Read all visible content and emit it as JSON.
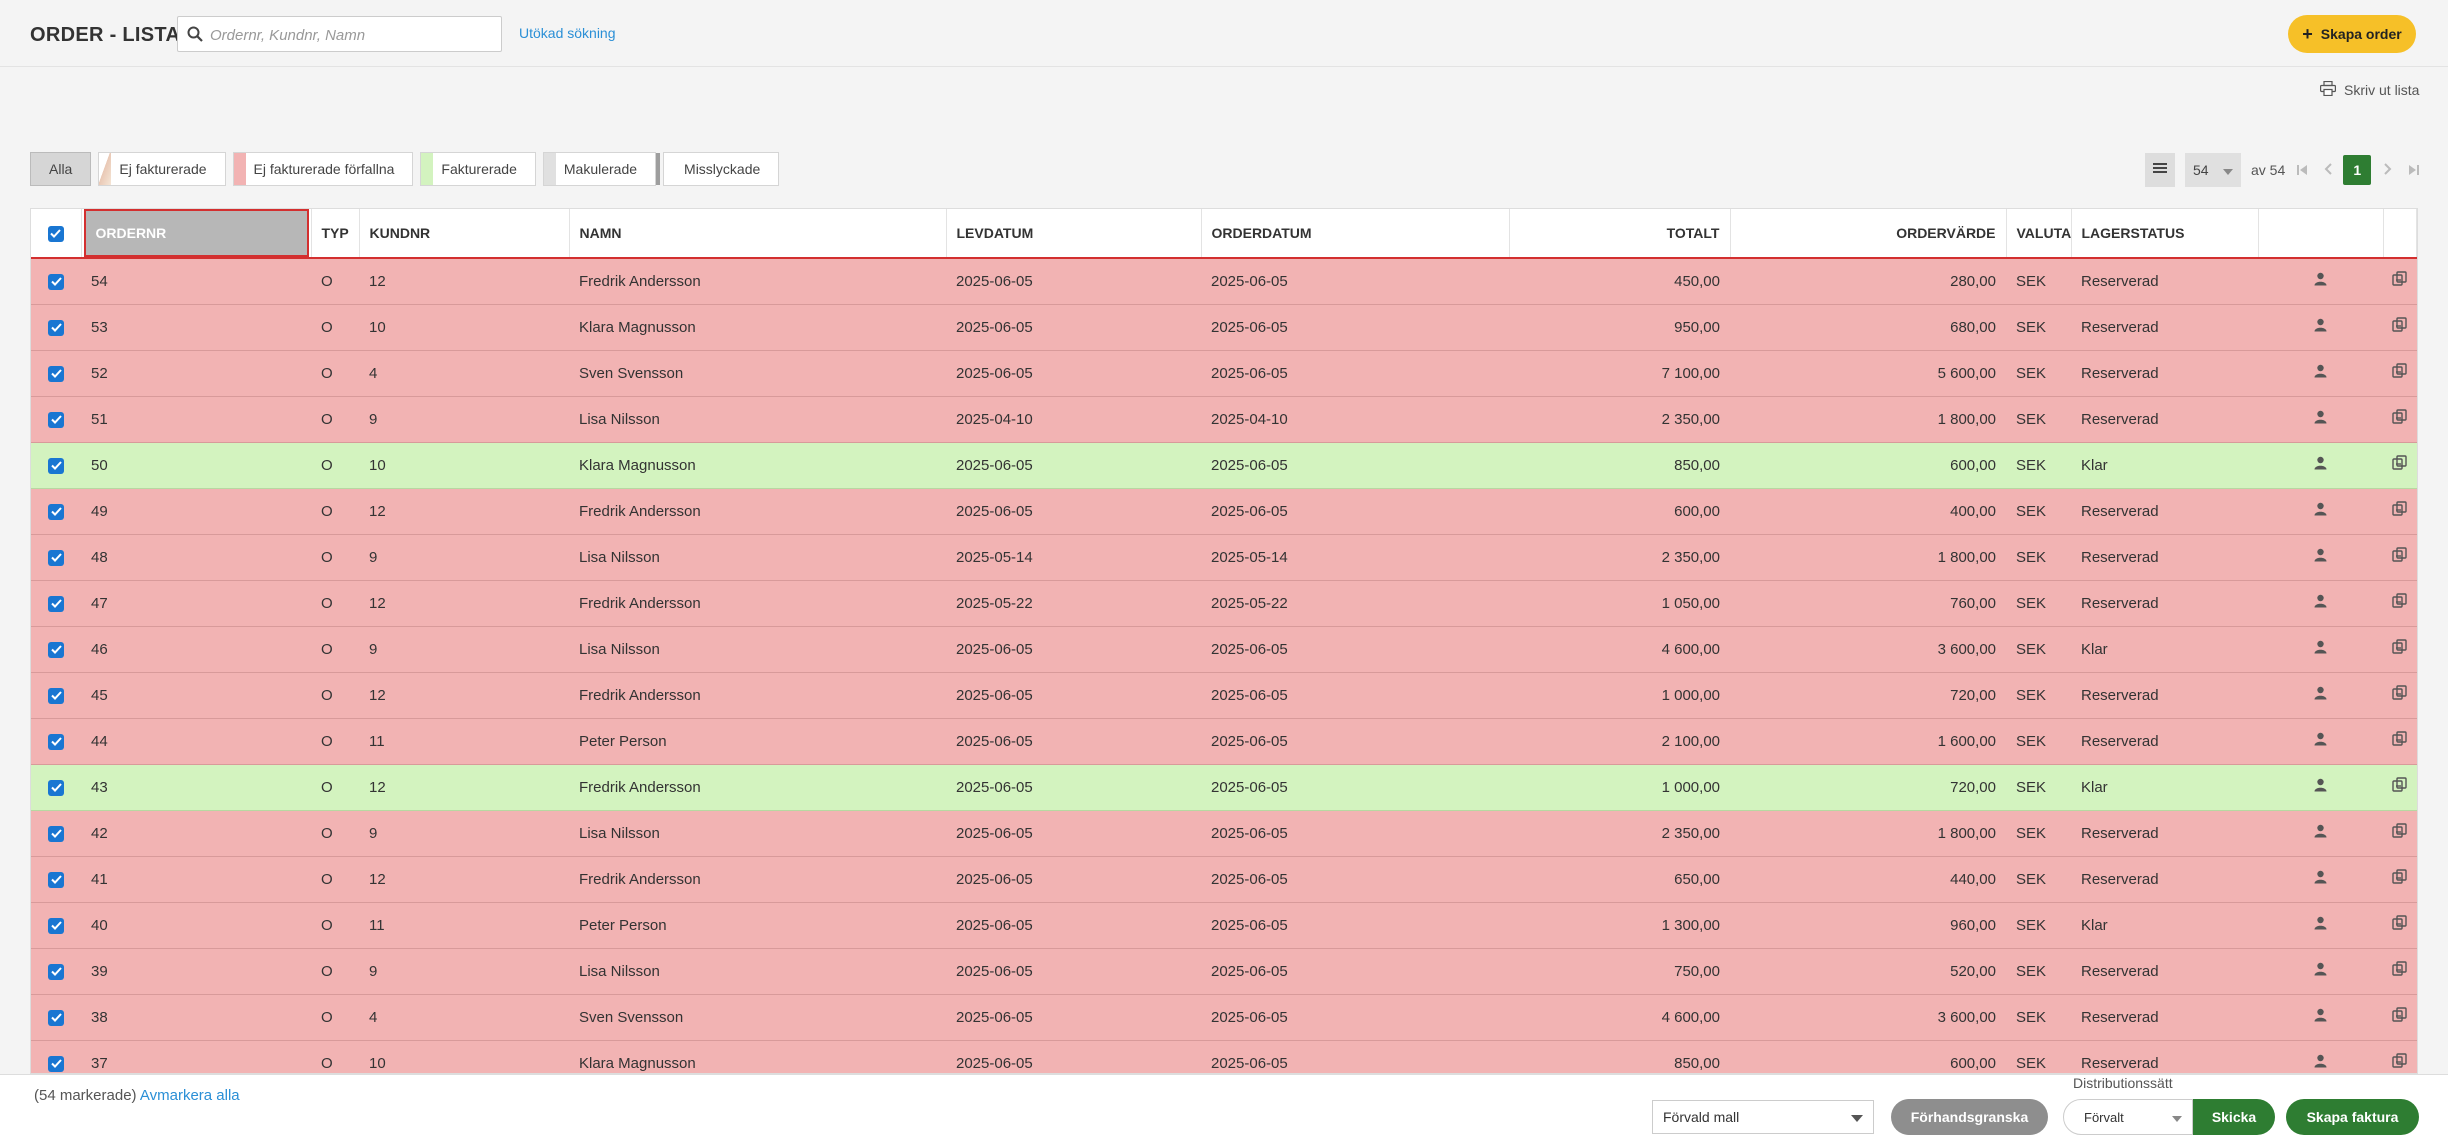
{
  "header": {
    "title": "ORDER - LISTA",
    "search_placeholder": "Ordernr, Kundnr, Namn",
    "advanced_search": "Utökad sökning",
    "create_order": "Skapa order",
    "print_list": "Skriv ut lista"
  },
  "filters": [
    {
      "label": "Alla",
      "active": true,
      "color": ""
    },
    {
      "label": "Ej fakturerade",
      "active": false,
      "color": "#f5e6d6"
    },
    {
      "label": "Ej fakturerade förfallna",
      "active": false,
      "color": "#f2b3b3"
    },
    {
      "label": "Fakturerade",
      "active": false,
      "color": "#d3f3bf"
    },
    {
      "label": "Makulerade",
      "active": false,
      "color": "#e0e0e0"
    },
    {
      "label": "Misslyckade",
      "active": false,
      "color": "#9e9e9e"
    }
  ],
  "pager": {
    "page_size": "54",
    "of_label": "av 54",
    "current_page": "1"
  },
  "table": {
    "columns": [
      "ORDERNR",
      "TYP",
      "KUNDNR",
      "NAMN",
      "LEVDATUM",
      "ORDERDATUM",
      "TOTALT",
      "ORDERVÄRDE",
      "VALUTA",
      "LAGERSTATUS"
    ],
    "rows": [
      {
        "status": "red",
        "ordernr": "54",
        "typ": "O",
        "kundnr": "12",
        "namn": "Fredrik Andersson",
        "levdatum": "2025-06-05",
        "orderdatum": "2025-06-05",
        "totalt": "450,00",
        "ordervarde": "280,00",
        "valuta": "SEK",
        "lagerstatus": "Reserverad"
      },
      {
        "status": "red",
        "ordernr": "53",
        "typ": "O",
        "kundnr": "10",
        "namn": "Klara Magnusson",
        "levdatum": "2025-06-05",
        "orderdatum": "2025-06-05",
        "totalt": "950,00",
        "ordervarde": "680,00",
        "valuta": "SEK",
        "lagerstatus": "Reserverad"
      },
      {
        "status": "red",
        "ordernr": "52",
        "typ": "O",
        "kundnr": "4",
        "namn": "Sven Svensson",
        "levdatum": "2025-06-05",
        "orderdatum": "2025-06-05",
        "totalt": "7 100,00",
        "ordervarde": "5 600,00",
        "valuta": "SEK",
        "lagerstatus": "Reserverad"
      },
      {
        "status": "red",
        "ordernr": "51",
        "typ": "O",
        "kundnr": "9",
        "namn": "Lisa Nilsson",
        "levdatum": "2025-04-10",
        "orderdatum": "2025-04-10",
        "totalt": "2 350,00",
        "ordervarde": "1 800,00",
        "valuta": "SEK",
        "lagerstatus": "Reserverad"
      },
      {
        "status": "green",
        "ordernr": "50",
        "typ": "O",
        "kundnr": "10",
        "namn": "Klara Magnusson",
        "levdatum": "2025-06-05",
        "orderdatum": "2025-06-05",
        "totalt": "850,00",
        "ordervarde": "600,00",
        "valuta": "SEK",
        "lagerstatus": "Klar"
      },
      {
        "status": "red",
        "ordernr": "49",
        "typ": "O",
        "kundnr": "12",
        "namn": "Fredrik Andersson",
        "levdatum": "2025-06-05",
        "orderdatum": "2025-06-05",
        "totalt": "600,00",
        "ordervarde": "400,00",
        "valuta": "SEK",
        "lagerstatus": "Reserverad"
      },
      {
        "status": "red",
        "ordernr": "48",
        "typ": "O",
        "kundnr": "9",
        "namn": "Lisa Nilsson",
        "levdatum": "2025-05-14",
        "orderdatum": "2025-05-14",
        "totalt": "2 350,00",
        "ordervarde": "1 800,00",
        "valuta": "SEK",
        "lagerstatus": "Reserverad"
      },
      {
        "status": "red",
        "ordernr": "47",
        "typ": "O",
        "kundnr": "12",
        "namn": "Fredrik Andersson",
        "levdatum": "2025-05-22",
        "orderdatum": "2025-05-22",
        "totalt": "1 050,00",
        "ordervarde": "760,00",
        "valuta": "SEK",
        "lagerstatus": "Reserverad"
      },
      {
        "status": "red",
        "ordernr": "46",
        "typ": "O",
        "kundnr": "9",
        "namn": "Lisa Nilsson",
        "levdatum": "2025-06-05",
        "orderdatum": "2025-06-05",
        "totalt": "4 600,00",
        "ordervarde": "3 600,00",
        "valuta": "SEK",
        "lagerstatus": "Klar"
      },
      {
        "status": "red",
        "ordernr": "45",
        "typ": "O",
        "kundnr": "12",
        "namn": "Fredrik Andersson",
        "levdatum": "2025-06-05",
        "orderdatum": "2025-06-05",
        "totalt": "1 000,00",
        "ordervarde": "720,00",
        "valuta": "SEK",
        "lagerstatus": "Reserverad"
      },
      {
        "status": "red",
        "ordernr": "44",
        "typ": "O",
        "kundnr": "11",
        "namn": "Peter Person",
        "levdatum": "2025-06-05",
        "orderdatum": "2025-06-05",
        "totalt": "2 100,00",
        "ordervarde": "1 600,00",
        "valuta": "SEK",
        "lagerstatus": "Reserverad"
      },
      {
        "status": "green",
        "ordernr": "43",
        "typ": "O",
        "kundnr": "12",
        "namn": "Fredrik Andersson",
        "levdatum": "2025-06-05",
        "orderdatum": "2025-06-05",
        "totalt": "1 000,00",
        "ordervarde": "720,00",
        "valuta": "SEK",
        "lagerstatus": "Klar"
      },
      {
        "status": "red",
        "ordernr": "42",
        "typ": "O",
        "kundnr": "9",
        "namn": "Lisa Nilsson",
        "levdatum": "2025-06-05",
        "orderdatum": "2025-06-05",
        "totalt": "2 350,00",
        "ordervarde": "1 800,00",
        "valuta": "SEK",
        "lagerstatus": "Reserverad"
      },
      {
        "status": "red",
        "ordernr": "41",
        "typ": "O",
        "kundnr": "12",
        "namn": "Fredrik Andersson",
        "levdatum": "2025-06-05",
        "orderdatum": "2025-06-05",
        "totalt": "650,00",
        "ordervarde": "440,00",
        "valuta": "SEK",
        "lagerstatus": "Reserverad"
      },
      {
        "status": "red",
        "ordernr": "40",
        "typ": "O",
        "kundnr": "11",
        "namn": "Peter Person",
        "levdatum": "2025-06-05",
        "orderdatum": "2025-06-05",
        "totalt": "1 300,00",
        "ordervarde": "960,00",
        "valuta": "SEK",
        "lagerstatus": "Klar"
      },
      {
        "status": "red",
        "ordernr": "39",
        "typ": "O",
        "kundnr": "9",
        "namn": "Lisa Nilsson",
        "levdatum": "2025-06-05",
        "orderdatum": "2025-06-05",
        "totalt": "750,00",
        "ordervarde": "520,00",
        "valuta": "SEK",
        "lagerstatus": "Reserverad"
      },
      {
        "status": "red",
        "ordernr": "38",
        "typ": "O",
        "kundnr": "4",
        "namn": "Sven Svensson",
        "levdatum": "2025-06-05",
        "orderdatum": "2025-06-05",
        "totalt": "4 600,00",
        "ordervarde": "3 600,00",
        "valuta": "SEK",
        "lagerstatus": "Reserverad"
      },
      {
        "status": "red",
        "ordernr": "37",
        "typ": "O",
        "kundnr": "10",
        "namn": "Klara Magnusson",
        "levdatum": "2025-06-05",
        "orderdatum": "2025-06-05",
        "totalt": "850,00",
        "ordervarde": "600,00",
        "valuta": "SEK",
        "lagerstatus": "Reserverad"
      }
    ]
  },
  "footer": {
    "selected_count": "(54 markerade)",
    "deselect_all": "Avmarkera alla",
    "template_select": "Förvald mall",
    "preview": "Förhandsgranska",
    "distribution_label": "Distributionssätt",
    "distribution_select": "Förvalt",
    "send": "Skicka",
    "create_invoice": "Skapa faktura"
  },
  "colors": {
    "accent_green": "#2e7d32",
    "accent_yellow": "#f6c028",
    "row_red": "#f2b3b3",
    "row_green": "#d3f3bf",
    "highlight_border": "#d32f2f"
  },
  "icons": {
    "search": "search-icon",
    "plus": "plus-icon",
    "print": "print-icon",
    "menu": "list-menu-icon",
    "user": "user-icon",
    "copy": "copy-icon"
  }
}
